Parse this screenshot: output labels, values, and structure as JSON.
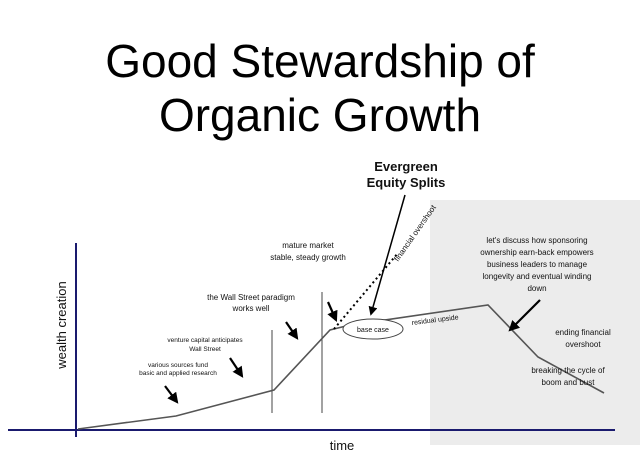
{
  "slide": {
    "title_line1": "Good Stewardship of",
    "title_line2": "Organic Growth"
  },
  "axes": {
    "x_label": "time",
    "y_label": "wealth creation",
    "color": "#1a1a6e"
  },
  "colors": {
    "shaded_region": "#ececec",
    "curve": "#555555"
  },
  "annotations": {
    "various_sources": [
      "various sources fund",
      "basic and applied research"
    ],
    "venture_capital": [
      "venture capital anticipates",
      "Wall Street"
    ],
    "wall_street": [
      "the Wall Street paradigm",
      "works well"
    ],
    "mature_market": [
      "mature market",
      "stable, steady growth"
    ],
    "evergreen": [
      "Evergreen",
      "Equity Splits"
    ],
    "financial_overshoot": "financial overshoot",
    "base_case": "base case",
    "residual_upside": "residual upside",
    "discuss": [
      "let's discuss how sponsoring",
      "ownership earn-back empowers",
      "business leaders to manage",
      "longevity and eventual winding",
      "down"
    ],
    "ending": [
      "ending financial",
      "overshoot"
    ],
    "breaking": [
      "breaking the cycle of",
      "boom and bust"
    ]
  }
}
